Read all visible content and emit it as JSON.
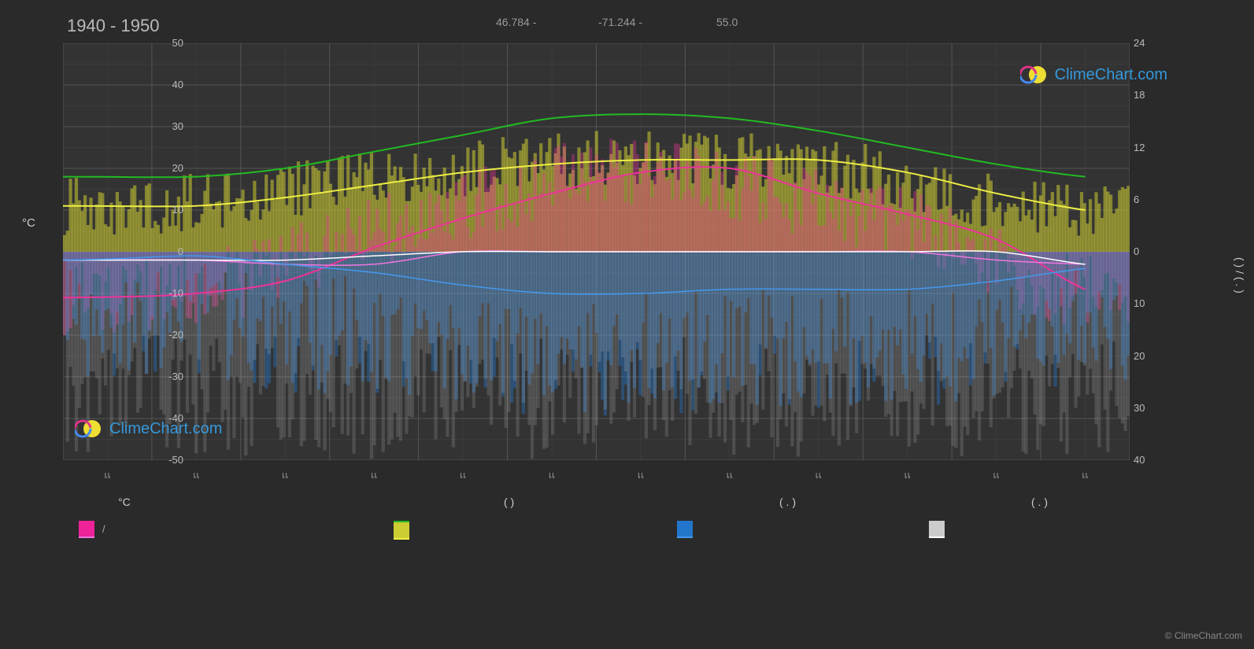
{
  "title": "1940 - 1950",
  "header": {
    "lat": "46.784 -",
    "lon": "-71.244 -",
    "alt": "55.0"
  },
  "brand": "ClimeChart.com",
  "copyright": "© ClimeChart.com",
  "chart": {
    "type": "climate-combo",
    "background": "#2a2a2a",
    "plot_bg": "#333333",
    "grid_color": "#555555",
    "grid_minor_color": "#444444",
    "y_left": {
      "label": "°C",
      "min": -50,
      "max": 50,
      "ticks": [
        50,
        40,
        30,
        20,
        10,
        0,
        -10,
        -20,
        -30,
        -40,
        -50
      ]
    },
    "y_right": {
      "label": "( ) / ( . )",
      "ticks_top": [
        24,
        18,
        12,
        6,
        0
      ],
      "ticks_bottom": [
        0,
        10,
        20,
        30,
        40
      ]
    },
    "months": [
      "เเ",
      "เเ",
      "เเ",
      "เเ",
      "เเ",
      "เเ",
      "เเ",
      "เเ",
      "เเ",
      "เเ",
      "เเ",
      "เเ"
    ],
    "series": {
      "temp_max_line": {
        "color": "#ee3399",
        "width": 2
      },
      "temp_min_line": {
        "color": "#ee77dd",
        "width": 1.5
      },
      "daylight_line": {
        "color": "#22bb22",
        "width": 2
      },
      "sun_area": {
        "color": "#cccc33"
      },
      "sun_line": {
        "color": "#eeee44",
        "width": 2
      },
      "precip_bars": {
        "color": "#2277cc"
      },
      "precip_line": {
        "color": "#4499ee",
        "width": 1.5
      },
      "rain_days": {
        "color": "#cccccc"
      },
      "white_line": {
        "color": "#ffffff",
        "width": 1.5
      }
    },
    "values": {
      "daylight": [
        18,
        18,
        20,
        24,
        28,
        32,
        33,
        32,
        29,
        25,
        21,
        18
      ],
      "sun_hours": [
        11,
        11,
        13,
        16,
        19,
        21,
        22,
        22,
        22,
        19,
        14,
        10
      ],
      "temp_max": [
        -11,
        -10,
        -7,
        1,
        8,
        14,
        19,
        20,
        14,
        9,
        3,
        -9
      ],
      "temp_min": [
        -2,
        -2,
        -3,
        -3,
        0,
        0,
        0,
        0,
        0,
        0,
        -2,
        -3
      ],
      "precip": [
        -2,
        -1,
        -3,
        -5,
        -8,
        -10,
        -10,
        -9,
        -9,
        -9,
        -7,
        -4
      ],
      "white": [
        -2,
        -2,
        -2,
        -1,
        0,
        0,
        0,
        0,
        0,
        0,
        0,
        -3
      ]
    }
  },
  "legend": {
    "col1_header": "°C",
    "col1_items": [
      {
        "type": "swatch",
        "color": "#ee2299",
        "label": "/"
      },
      {
        "type": "line",
        "color": "#ee77dd",
        "label": ""
      }
    ],
    "col2_header": "(       )",
    "col2_items": [
      {
        "type": "line",
        "color": "#22bb22",
        "label": ""
      },
      {
        "type": "swatch",
        "color": "#cccc33",
        "label": ""
      },
      {
        "type": "line",
        "color": "#eeee44",
        "label": ""
      }
    ],
    "col3_header": "(  . )",
    "col3_items": [
      {
        "type": "swatch",
        "color": "#2277cc",
        "label": ""
      },
      {
        "type": "line",
        "color": "#4499ee",
        "label": ""
      }
    ],
    "col4_header": "(  . )",
    "col4_items": [
      {
        "type": "swatch",
        "color": "#cccccc",
        "label": ""
      },
      {
        "type": "line",
        "color": "#ffffff",
        "label": ""
      }
    ]
  }
}
